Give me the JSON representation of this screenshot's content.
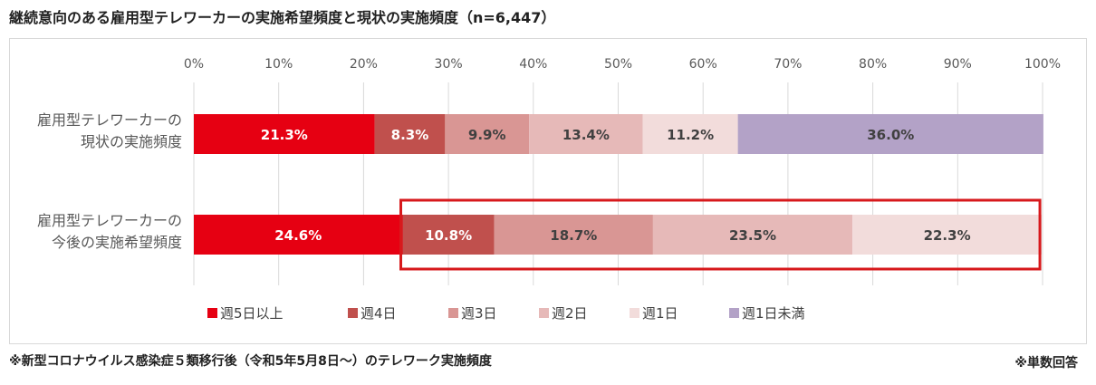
{
  "title": "継続意向のある雇用型テレワーカーの実施希望頻度と現状の実施頻度（n=6,447）",
  "footnote_left": "※新型コロナウイルス感染症５類移行後（令和5年5月8日～）のテレワーク実施頻度",
  "footnote_right": "※単数回答",
  "colors": {
    "week5plus": "#e60012",
    "week4": "#c0504d",
    "week3": "#d99694",
    "week2": "#e6b9b8",
    "week1": "#f2dcdb",
    "less_than_week1": "#b3a2c7",
    "highlight_box": "#d7191c"
  },
  "chart_data": {
    "type": "bar",
    "orientation": "horizontal",
    "stacked": true,
    "xlim": [
      0,
      100
    ],
    "x_ticks": [
      "0%",
      "10%",
      "20%",
      "30%",
      "40%",
      "50%",
      "60%",
      "70%",
      "80%",
      "90%",
      "100%"
    ],
    "grid": true,
    "legend_position": "bottom",
    "categories": [
      [
        "雇用型テレワーカーの",
        "現状の実施頻度"
      ],
      [
        "雇用型テレワーカーの",
        "今後の実施希望頻度"
      ]
    ],
    "series": [
      {
        "name": "週5日以上",
        "color_key": "week5plus",
        "values": [
          21.3,
          24.6
        ],
        "labels": [
          "21.3%",
          "24.6%"
        ],
        "label_color": "#ffffff"
      },
      {
        "name": "週4日",
        "color_key": "week4",
        "values": [
          8.3,
          10.8
        ],
        "labels": [
          "8.3%",
          "10.8%"
        ],
        "label_color": "#ffffff"
      },
      {
        "name": "週3日",
        "color_key": "week3",
        "values": [
          9.9,
          18.7
        ],
        "labels": [
          "9.9%",
          "18.7%"
        ],
        "label_color": "#404040"
      },
      {
        "name": "週2日",
        "color_key": "week2",
        "values": [
          13.4,
          23.5
        ],
        "labels": [
          "13.4%",
          "23.5%"
        ],
        "label_color": "#404040"
      },
      {
        "name": "週1日",
        "color_key": "week1",
        "values": [
          11.2,
          22.3
        ],
        "labels": [
          "11.2%",
          "22.3%"
        ],
        "label_color": "#404040"
      },
      {
        "name": "週1日未満",
        "color_key": "less_than_week1",
        "values": [
          36.0,
          null
        ],
        "labels": [
          "36.0%",
          ""
        ],
        "label_color": "#404040"
      }
    ],
    "highlight": {
      "category_index": 1,
      "from_series": 1,
      "to_series": 4
    }
  }
}
